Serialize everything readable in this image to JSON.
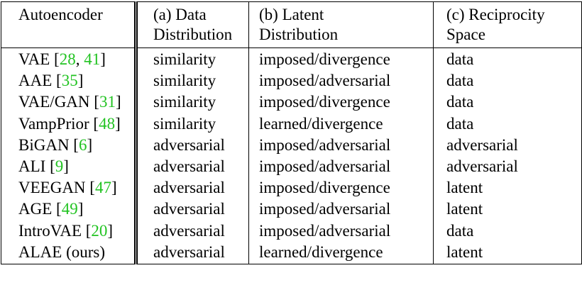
{
  "header": {
    "col1": "Autoencoder",
    "col2_line1": "(a) Data",
    "col2_line2": "Distribution",
    "col3_line1": "(b) Latent",
    "col3_line2": "Distribution",
    "col4_line1": "(c) Reciprocity",
    "col4_line2": "Space"
  },
  "rows": [
    {
      "name": "VAE [",
      "cites": [
        "28",
        ", ",
        "41"
      ],
      "close": "]",
      "data": "similarity",
      "latent": "imposed/divergence",
      "space": "data"
    },
    {
      "name": "AAE [",
      "cites": [
        "35"
      ],
      "close": "]",
      "data": "similarity",
      "latent": "imposed/adversarial",
      "space": "data"
    },
    {
      "name": "VAE/GAN [",
      "cites": [
        "31"
      ],
      "close": "]",
      "data": "similarity",
      "latent": "imposed/divergence",
      "space": "data"
    },
    {
      "name": "VampPrior [",
      "cites": [
        "48"
      ],
      "close": "]",
      "data": "similarity",
      "latent": "learned/divergence",
      "space": "data"
    },
    {
      "name": "BiGAN [",
      "cites": [
        "6"
      ],
      "close": "]",
      "data": "adversarial",
      "latent": "imposed/adversarial",
      "space": "adversarial"
    },
    {
      "name": "ALI [",
      "cites": [
        "9"
      ],
      "close": "]",
      "data": "adversarial",
      "latent": "imposed/adversarial",
      "space": "adversarial"
    },
    {
      "name": "VEEGAN [",
      "cites": [
        "47"
      ],
      "close": "]",
      "data": "adversarial",
      "latent": "imposed/divergence",
      "space": "latent"
    },
    {
      "name": "AGE [",
      "cites": [
        "49"
      ],
      "close": "]",
      "data": "adversarial",
      "latent": "imposed/adversarial",
      "space": "latent"
    },
    {
      "name": "IntroVAE [",
      "cites": [
        "20"
      ],
      "close": "]",
      "data": "adversarial",
      "latent": "imposed/adversarial",
      "space": "data"
    },
    {
      "name": "ALAE (ours)",
      "cites": [],
      "close": "",
      "data": "adversarial",
      "latent": "learned/divergence",
      "space": "latent"
    }
  ],
  "colors": {
    "citation": "#22c322",
    "text": "#000000",
    "rule": "#000000"
  }
}
